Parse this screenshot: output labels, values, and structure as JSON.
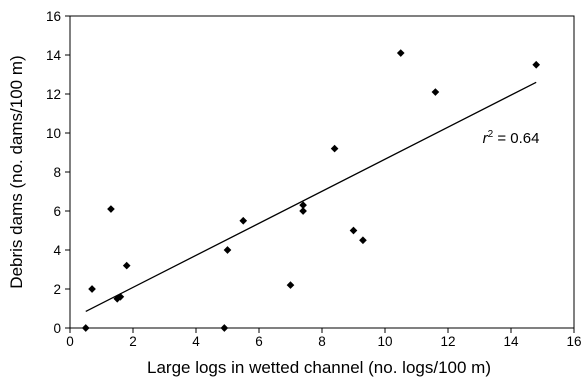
{
  "chart_data": {
    "type": "scatter",
    "title": "",
    "xlabel": "Large logs in wetted channel (no. logs/100 m)",
    "ylabel": "Debris dams (no. dams/100 m)",
    "xlim": [
      0,
      16
    ],
    "ylim": [
      0,
      16
    ],
    "xticks": [
      0,
      2,
      4,
      6,
      8,
      10,
      12,
      14,
      16
    ],
    "yticks": [
      0,
      2,
      4,
      6,
      8,
      10,
      12,
      14,
      16
    ],
    "grid": false,
    "legend": "none",
    "marker_color": "#000000",
    "series": [
      {
        "points": [
          {
            "x": 0.5,
            "y": 0.0
          },
          {
            "x": 0.7,
            "y": 2.0
          },
          {
            "x": 1.3,
            "y": 6.1
          },
          {
            "x": 1.5,
            "y": 1.5
          },
          {
            "x": 1.6,
            "y": 1.6
          },
          {
            "x": 1.8,
            "y": 3.2
          },
          {
            "x": 4.9,
            "y": 0.0
          },
          {
            "x": 5.0,
            "y": 4.0
          },
          {
            "x": 5.5,
            "y": 5.5
          },
          {
            "x": 7.0,
            "y": 2.2
          },
          {
            "x": 7.4,
            "y": 6.3
          },
          {
            "x": 7.4,
            "y": 6.0
          },
          {
            "x": 8.4,
            "y": 9.2
          },
          {
            "x": 9.0,
            "y": 5.0
          },
          {
            "x": 9.3,
            "y": 4.5
          },
          {
            "x": 10.5,
            "y": 14.1
          },
          {
            "x": 11.6,
            "y": 12.1
          },
          {
            "x": 14.8,
            "y": 13.5
          }
        ]
      }
    ],
    "trendline": {
      "x": [
        0.5,
        14.8
      ],
      "y": [
        0.85,
        12.6
      ]
    },
    "annotations": [
      {
        "label": "r",
        "superscript": "2",
        "value_text": " = 0.64",
        "x": 13.1,
        "y": 9.5
      }
    ]
  }
}
